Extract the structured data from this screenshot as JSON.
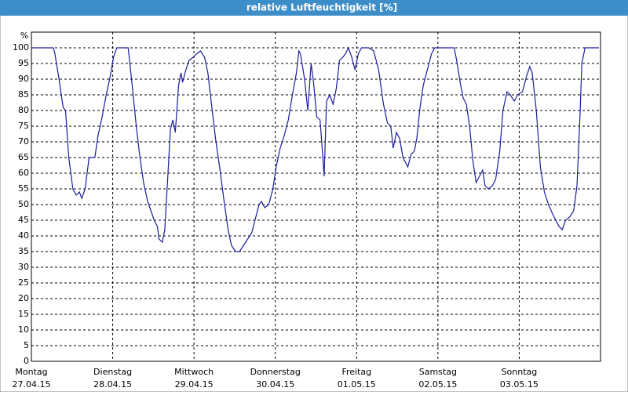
{
  "chart_data": {
    "type": "line",
    "title": "relative Luftfeuchtigkeit [%]",
    "y_label": "%",
    "xlim": [
      0,
      7
    ],
    "ylim": [
      0,
      105
    ],
    "yticks": [
      0,
      5,
      10,
      15,
      20,
      25,
      30,
      35,
      40,
      45,
      50,
      55,
      60,
      65,
      70,
      75,
      80,
      85,
      90,
      95,
      100
    ],
    "xticks": [
      {
        "value": 0,
        "label": "Montag"
      },
      {
        "value": 1,
        "label": "Dienstag"
      },
      {
        "value": 2,
        "label": "Mittwoch"
      },
      {
        "value": 3,
        "label": "Donnerstag"
      },
      {
        "value": 4,
        "label": "Freitag"
      },
      {
        "value": 5,
        "label": "Samstag"
      },
      {
        "value": 6,
        "label": "Sonntag"
      }
    ],
    "xtick_dates": [
      "27.04.15",
      "28.04.15",
      "29.04.15",
      "30.04.15",
      "01.05.15",
      "02.05.15",
      "03.05.15"
    ],
    "grid": true,
    "x": [
      0,
      0.27,
      0.29,
      0.34,
      0.39,
      0.42,
      0.46,
      0.51,
      0.55,
      0.59,
      0.62,
      0.66,
      0.71,
      0.75,
      0.78,
      0.82,
      0.87,
      0.92,
      0.97,
      1.01,
      1.05,
      1.19,
      1.24,
      1.29,
      1.33,
      1.38,
      1.43,
      1.47,
      1.51,
      1.55,
      1.57,
      1.61,
      1.64,
      1.68,
      1.71,
      1.74,
      1.77,
      1.81,
      1.84,
      1.86,
      1.9,
      1.94,
      1.99,
      2.03,
      2.08,
      2.13,
      2.17,
      2.22,
      2.27,
      2.32,
      2.37,
      2.42,
      2.46,
      2.51,
      2.56,
      2.61,
      2.66,
      2.71,
      2.75,
      2.8,
      2.83,
      2.87,
      2.92,
      2.97,
      3.01,
      3.06,
      3.11,
      3.16,
      3.21,
      3.26,
      3.29,
      3.31,
      3.36,
      3.4,
      3.44,
      3.47,
      3.51,
      3.55,
      3.57,
      3.6,
      3.63,
      3.67,
      3.71,
      3.75,
      3.79,
      3.83,
      3.86,
      3.9,
      3.94,
      3.98,
      4.02,
      4.06,
      4.15,
      4.21,
      4.27,
      4.33,
      4.38,
      4.42,
      4.45,
      4.49,
      4.53,
      4.57,
      4.63,
      4.67,
      4.71,
      4.74,
      4.78,
      4.82,
      4.87,
      4.92,
      4.96,
      5.02,
      5.13,
      5.2,
      5.23,
      5.28,
      5.31,
      5.35,
      5.39,
      5.43,
      5.47,
      5.51,
      5.55,
      5.58,
      5.62,
      5.67,
      5.71,
      5.76,
      5.8,
      5.85,
      5.89,
      5.94,
      5.98,
      6.04,
      6.09,
      6.13,
      6.16,
      6.21,
      6.26,
      6.31,
      6.36,
      6.41,
      6.45,
      6.49,
      6.53,
      6.57,
      6.62,
      6.67,
      6.71,
      6.75,
      6.77,
      6.81,
      6.98
    ],
    "series": [
      {
        "name": "relative Luftfeuchtigkeit",
        "color": "#1c1c9c",
        "values": [
          100,
          100,
          98,
          90,
          81,
          80,
          65,
          55,
          53,
          54,
          52,
          55,
          65,
          65,
          65,
          72,
          78,
          85,
          91,
          97,
          100,
          100,
          88,
          75,
          66,
          57,
          51,
          48,
          45,
          43,
          39,
          38,
          42,
          60,
          74,
          77,
          73,
          88,
          92,
          89,
          93,
          96,
          97,
          98,
          99,
          97,
          92,
          81,
          70,
          61,
          51,
          42,
          37,
          35,
          35,
          37,
          39,
          41,
          45,
          50,
          51,
          49,
          50,
          55,
          62,
          68,
          72,
          77,
          85,
          92,
          99,
          98,
          90,
          80,
          95,
          89,
          78,
          77,
          70,
          59,
          83,
          85,
          82,
          87,
          96,
          97,
          98,
          100,
          97,
          93,
          98,
          100,
          100,
          99,
          93,
          82,
          76,
          75,
          68,
          73,
          71,
          65,
          62,
          66,
          67,
          71,
          81,
          88,
          93,
          98,
          100,
          100,
          100,
          100,
          96,
          88,
          84,
          82,
          75,
          64,
          57,
          59,
          61,
          56,
          55,
          56,
          58,
          67,
          80,
          86,
          85,
          83,
          85,
          86,
          91,
          94,
          92,
          80,
          62,
          54,
          50,
          47,
          45,
          43,
          42,
          45,
          46,
          48,
          56,
          80,
          95,
          100,
          100
        ]
      }
    ]
  }
}
